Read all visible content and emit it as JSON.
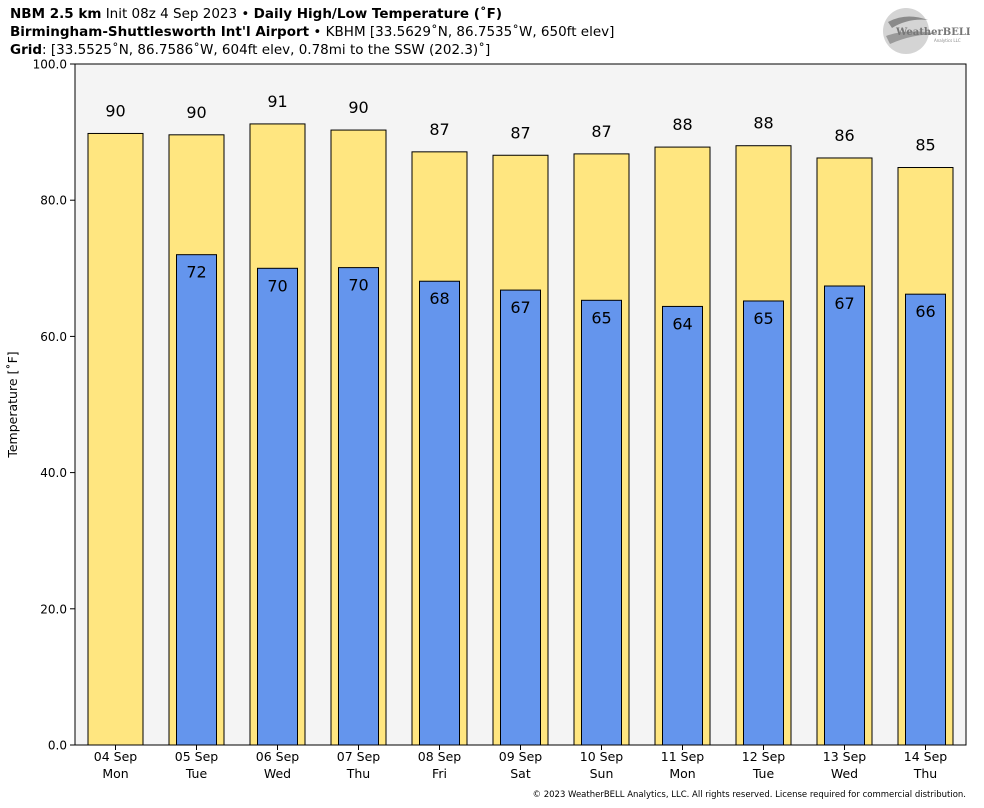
{
  "header": {
    "line1": {
      "model": "NBM 2.5 km",
      "init": "Init 08z 4 Sep 2023",
      "sep": "•",
      "product": "Daily High/Low Temperature (˚F)"
    },
    "line2": {
      "station": "Birmingham-Shuttlesworth Int'l Airport",
      "sep": "•",
      "details": "KBHM [33.5629˚N, 86.7535˚W, 650ft elev]"
    },
    "line3": {
      "label": "Grid",
      "details": ": [33.5525˚N, 86.7586˚W, 604ft elev, 0.78mi to the SSW (202.3)˚]"
    }
  },
  "logo": {
    "text": "WeatherBELL",
    "subtext": "Analytics LLC"
  },
  "copyright": "© 2023 WeatherBELL Analytics, LLC. All rights reserved. License required for commercial distribution.",
  "colors": {
    "high": "#ffe680",
    "low": "#6495ed",
    "plot_bg": "#f4f4f4",
    "edge": "#000000"
  },
  "chart_data": {
    "type": "bar",
    "ylabel": "Temperature [˚F]",
    "ylim": [
      0,
      100
    ],
    "yticks": [
      "0.0",
      "20.0",
      "40.0",
      "60.0",
      "80.0",
      "100.0"
    ],
    "grid": false,
    "categories": [
      {
        "date": "04 Sep",
        "day": "Mon"
      },
      {
        "date": "05 Sep",
        "day": "Tue"
      },
      {
        "date": "06 Sep",
        "day": "Wed"
      },
      {
        "date": "07 Sep",
        "day": "Thu"
      },
      {
        "date": "08 Sep",
        "day": "Fri"
      },
      {
        "date": "09 Sep",
        "day": "Sat"
      },
      {
        "date": "10 Sep",
        "day": "Sun"
      },
      {
        "date": "11 Sep",
        "day": "Mon"
      },
      {
        "date": "12 Sep",
        "day": "Tue"
      },
      {
        "date": "13 Sep",
        "day": "Wed"
      },
      {
        "date": "14 Sep",
        "day": "Thu"
      }
    ],
    "series": [
      {
        "key": "high",
        "values": [
          89.8,
          89.6,
          91.2,
          90.3,
          87.1,
          86.6,
          86.8,
          87.8,
          88.0,
          86.2,
          84.8
        ],
        "labels": [
          "90",
          "90",
          "91",
          "90",
          "87",
          "87",
          "87",
          "88",
          "88",
          "86",
          "85"
        ]
      },
      {
        "key": "low",
        "values": [
          null,
          72.0,
          70.0,
          70.1,
          68.1,
          66.8,
          65.3,
          64.4,
          65.2,
          67.4,
          66.2
        ],
        "labels": [
          "",
          "72",
          "70",
          "70",
          "68",
          "67",
          "65",
          "64",
          "65",
          "67",
          "66"
        ]
      }
    ]
  }
}
